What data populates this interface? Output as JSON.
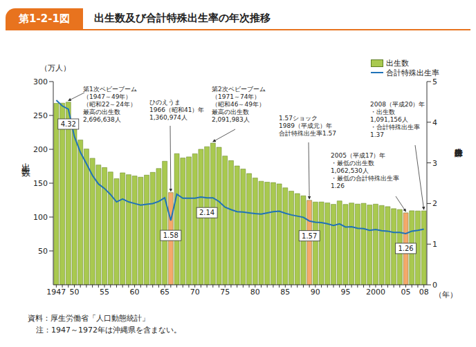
{
  "chart_data": {
    "type": "bar",
    "figure_label": "第1-2-1図",
    "title": "出生数及び合計特殊出生率の年次推移",
    "y_label": "出生数",
    "y_unit": "（万人）",
    "y2_label": "合計特殊出生率",
    "x_unit": "（年）",
    "categories": [
      "1947",
      null,
      null,
      "50",
      null,
      null,
      null,
      null,
      "55",
      null,
      null,
      null,
      null,
      "60",
      null,
      null,
      null,
      null,
      "65",
      null,
      null,
      null,
      null,
      "70",
      null,
      null,
      null,
      null,
      "75",
      null,
      null,
      null,
      null,
      "80",
      null,
      null,
      null,
      null,
      "85",
      null,
      null,
      null,
      null,
      "90",
      null,
      null,
      null,
      null,
      "95",
      null,
      null,
      null,
      null,
      "2000",
      null,
      null,
      null,
      null,
      "05",
      null,
      null,
      "08"
    ],
    "series": [
      {
        "name": "出生数",
        "type": "bar",
        "color": "#a9c94f",
        "colors": [
          "#a9c94f",
          "#a9c94f",
          "#a9c94f",
          "#a9c94f",
          "#a9c94f",
          "#a9c94f",
          "#a9c94f",
          "#a9c94f",
          "#a9c94f",
          "#a9c94f",
          "#a9c94f",
          "#a9c94f",
          "#a9c94f",
          "#a9c94f",
          "#a9c94f",
          "#a9c94f",
          "#a9c94f",
          "#a9c94f",
          "#a9c94f",
          "#f5a86b",
          "#a9c94f",
          "#a9c94f",
          "#a9c94f",
          "#a9c94f",
          "#a9c94f",
          "#a9c94f",
          "#a9c94f",
          "#a9c94f",
          "#a9c94f",
          "#a9c94f",
          "#a9c94f",
          "#a9c94f",
          "#a9c94f",
          "#a9c94f",
          "#a9c94f",
          "#a9c94f",
          "#a9c94f",
          "#a9c94f",
          "#a9c94f",
          "#a9c94f",
          "#a9c94f",
          "#a9c94f",
          "#f5a86b",
          "#a9c94f",
          "#a9c94f",
          "#a9c94f",
          "#a9c94f",
          "#a9c94f",
          "#a9c94f",
          "#a9c94f",
          "#a9c94f",
          "#a9c94f",
          "#a9c94f",
          "#a9c94f",
          "#a9c94f",
          "#a9c94f",
          "#a9c94f",
          "#a9c94f",
          "#f5a86b",
          "#a9c94f",
          "#a9c94f",
          "#a9c94f"
        ],
        "values": [
          267.9,
          268.2,
          269.66,
          233.8,
          213.8,
          200.5,
          186.8,
          176.9,
          173.1,
          166.5,
          156.7,
          165.3,
          162.6,
          160.6,
          158.9,
          161.9,
          166.0,
          171.7,
          182.4,
          136.1,
          193.6,
          187.2,
          188.9,
          193.4,
          200.1,
          203.9,
          209.2,
          203.0,
          190.1,
          183.3,
          175.5,
          170.9,
          164.3,
          157.7,
          152.9,
          151.5,
          150.9,
          149.0,
          143.2,
          138.3,
          134.7,
          131.4,
          124.7,
          122.2,
          122.3,
          120.9,
          118.8,
          123.8,
          118.7,
          120.7,
          119.2,
          120.3,
          117.8,
          119.1,
          117.1,
          115.4,
          112.4,
          111.1,
          106.25,
          109.3,
          109.0,
          109.12
        ]
      },
      {
        "name": "合計特殊出生率",
        "type": "line",
        "color": "#1f72b8",
        "axis": "y2",
        "values": [
          4.54,
          4.4,
          4.32,
          3.65,
          3.26,
          2.98,
          2.69,
          2.48,
          2.37,
          2.22,
          2.04,
          2.11,
          2.04,
          2.0,
          1.96,
          1.98,
          2.0,
          2.05,
          2.14,
          1.58,
          2.23,
          2.13,
          2.13,
          2.13,
          2.16,
          2.14,
          2.14,
          2.05,
          1.91,
          1.85,
          1.8,
          1.79,
          1.77,
          1.75,
          1.74,
          1.77,
          1.8,
          1.81,
          1.76,
          1.72,
          1.69,
          1.66,
          1.57,
          1.54,
          1.53,
          1.5,
          1.46,
          1.5,
          1.42,
          1.43,
          1.39,
          1.38,
          1.34,
          1.36,
          1.33,
          1.32,
          1.29,
          1.29,
          1.26,
          1.32,
          1.34,
          1.37
        ],
        "labeled_points": [
          2,
          19,
          25,
          42,
          58
        ]
      }
    ],
    "ylim": [
      0,
      300
    ],
    "yticks": [
      50,
      100,
      150,
      200,
      250,
      300
    ],
    "y2lim": [
      0,
      5
    ],
    "y2ticks": [
      0,
      1,
      2,
      3,
      4,
      5
    ],
    "grid": false,
    "legend": "top-right",
    "annotations": [
      {
        "index": 2,
        "text": [
          "第1次ベビーブーム",
          "（1947～49年）",
          "（昭和22～24年）",
          "最高の出生数",
          "2,696,638人"
        ]
      },
      {
        "index": 19,
        "text": [
          "ひのえうま",
          "1966（昭和41）年",
          "1,360,974人"
        ]
      },
      {
        "index": 26,
        "text": [
          "第2次ベビーブーム",
          "（1971～74年）",
          "（昭和46～49年）",
          "最高の出生数",
          "2,091,983人"
        ]
      },
      {
        "index": 42,
        "text": [
          "1.57ショック",
          "1989（平成元）年",
          "合計特殊出生率1.57"
        ]
      },
      {
        "index": 58,
        "text": [
          "2005（平成17）年",
          "・最低の出生数",
          "1,062,530人",
          "・最低の合計特殊出生率",
          "1.26"
        ]
      },
      {
        "index": 61,
        "text": [
          "2008（平成20）年",
          "・出生数",
          "1,091,156人",
          "・合計特殊出生率",
          "1.37"
        ]
      }
    ],
    "notes": [
      "資料：厚生労働省「人口動態統計」",
      "注：1947～1972年は沖縄県を含まない。"
    ]
  }
}
